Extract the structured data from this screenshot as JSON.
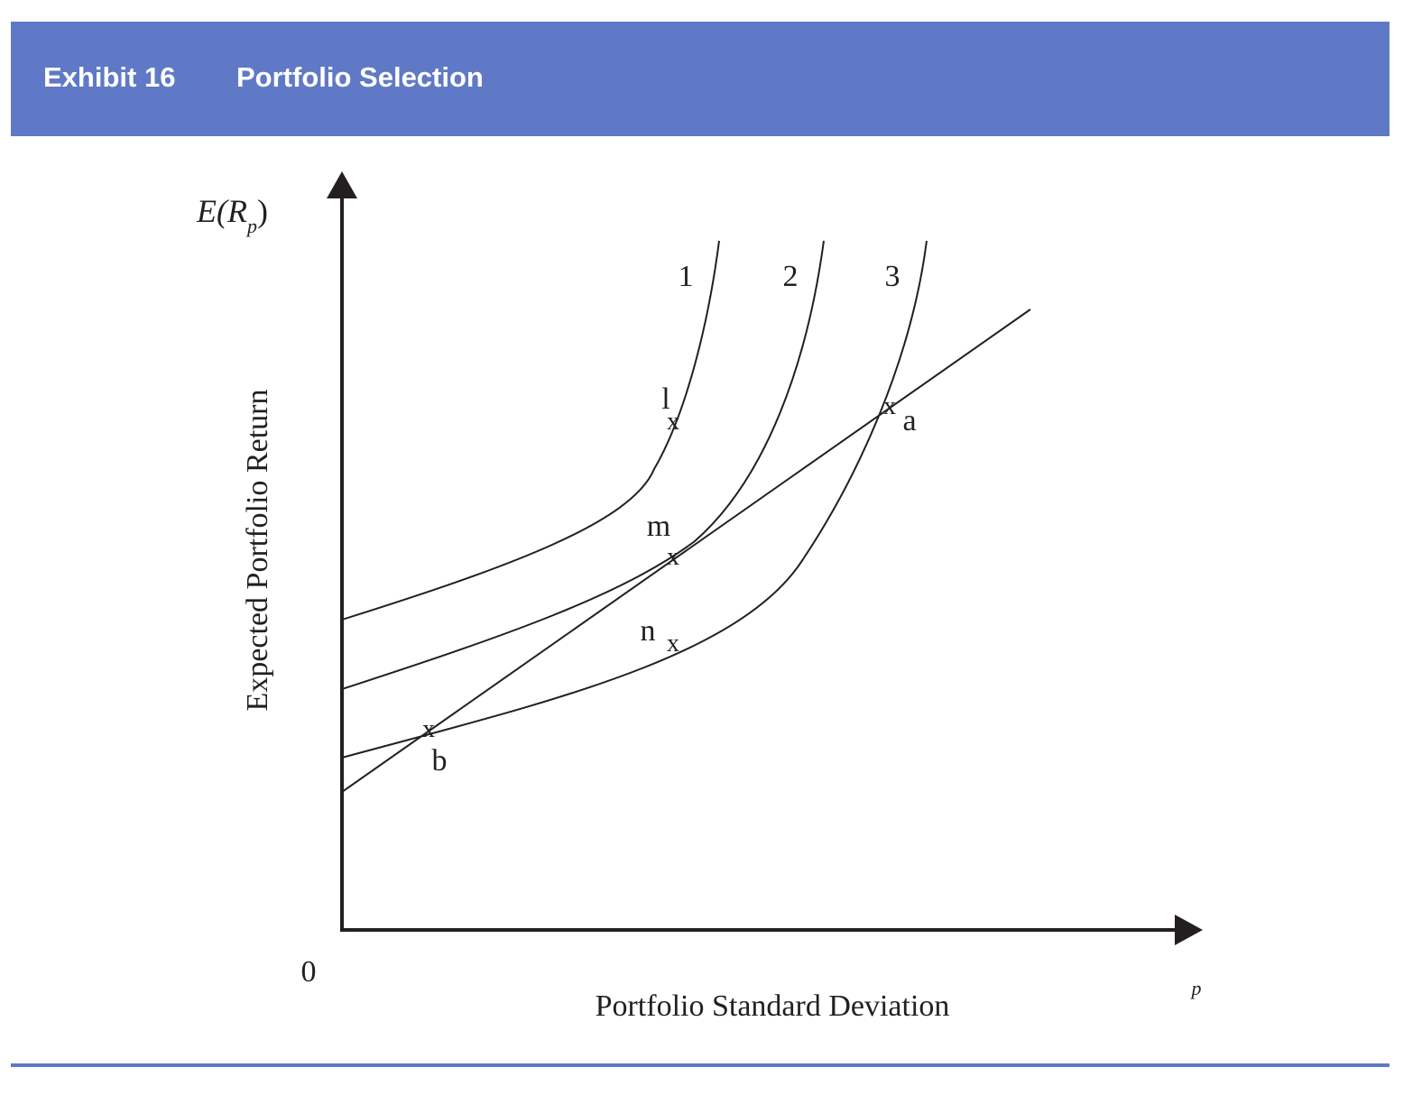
{
  "header": {
    "exhibit": "Exhibit 16",
    "title": "Portfolio Selection"
  },
  "colors": {
    "banner": "#6079c6",
    "ink": "#231f20"
  },
  "diagram": {
    "y_axis_symbol": "E(R",
    "y_axis_symbol_sub": "p",
    "y_axis_symbol_close": ")",
    "y_axis_title": "Expected Portfolio Return",
    "x_axis_title": "Portfolio Standard Deviation",
    "x_axis_subscript": "p",
    "origin_label": "0",
    "curve_labels": [
      "1",
      "2",
      "3"
    ],
    "point_marker": "x",
    "points": {
      "l": "l",
      "m": "m",
      "n": "n",
      "a": "a",
      "b": "b"
    }
  }
}
